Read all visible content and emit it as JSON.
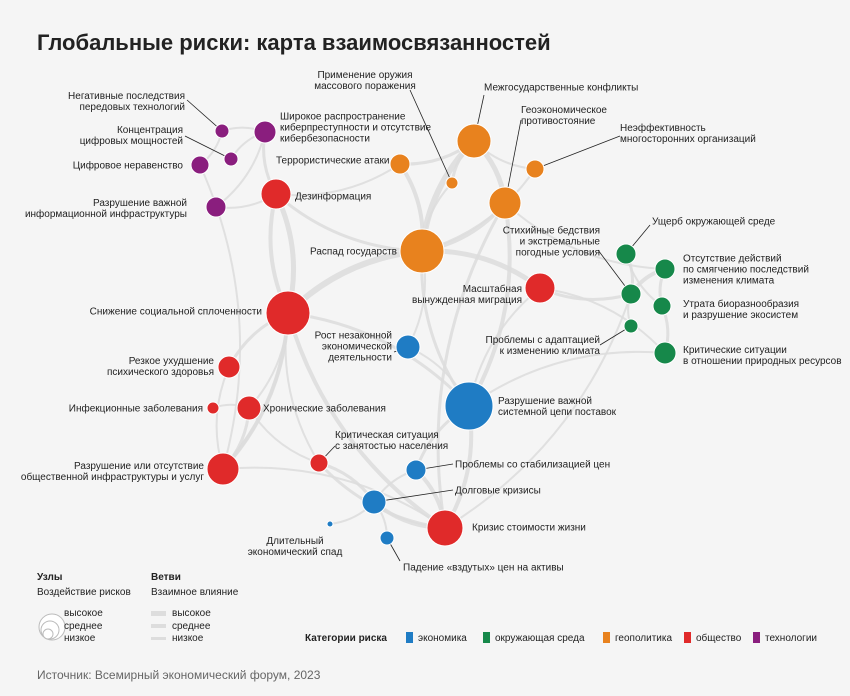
{
  "title": "Глобальные риски: карта взаимосвязанностей",
  "categories": [
    {
      "name": "экономика",
      "color": "#1f7cc4"
    },
    {
      "name": "окружающая среда",
      "color": "#16884a"
    },
    {
      "name": "геополитика",
      "color": "#e8821e"
    },
    {
      "name": "общество",
      "color": "#e02a2a"
    },
    {
      "name": "технологии",
      "color": "#8a1e7e"
    }
  ],
  "nodes": [
    {
      "label": [
        "Негативные последствия",
        "передовых технологий"
      ],
      "category": "технологии"
    },
    {
      "label": [
        "Концентрация",
        "цифровых мощностей"
      ],
      "category": "технологии"
    },
    {
      "label": [
        "Цифровое неравенство"
      ],
      "category": "технологии"
    },
    {
      "label": [
        "Разрушение важной",
        "информационной инфраструктуры"
      ],
      "category": "технологии"
    },
    {
      "label": [
        "Широкое распространение",
        "киберпреступности и отсутствие",
        "кибербезопасности"
      ],
      "category": "технологии"
    },
    {
      "label": [
        "Террористические атаки"
      ],
      "category": "геополитика"
    },
    {
      "label": [
        "Применение оружия",
        "массового поражения"
      ],
      "category": "геополитика"
    },
    {
      "label": [
        "Межгосударственные конфликты"
      ],
      "category": "геополитика"
    },
    {
      "label": [
        "Геоэкономическое",
        "противостояние"
      ],
      "category": "геополитика"
    },
    {
      "label": [
        "Неэффективность",
        "многосторонних организаций"
      ],
      "category": "геополитика"
    },
    {
      "label": [
        "Распад государств"
      ],
      "category": "геополитика"
    },
    {
      "label": [
        "Ущерб окружающей среде"
      ],
      "category": "окружающая среда"
    },
    {
      "label": [
        "Отсутствие действий",
        "по смягчению последствий",
        "изменения климата"
      ],
      "category": "окружающая среда"
    },
    {
      "label": [
        "Утрата биоразнообразия",
        "и разрушение экосистем"
      ],
      "category": "окружающая среда"
    },
    {
      "label": [
        "Критические ситуации",
        "в отношении природных ресурсов"
      ],
      "category": "окружающая среда"
    },
    {
      "label": [
        "Стихийные бедствия",
        "и экстремальные",
        "погодные условия"
      ],
      "category": "окружающая среда"
    },
    {
      "label": [
        "Проблемы с адаптацией",
        "к изменению климата"
      ],
      "category": "окружающая среда"
    },
    {
      "label": [
        "Дезинформация"
      ],
      "category": "общество"
    },
    {
      "label": [
        "Масштабная",
        "вынужденная миграция"
      ],
      "category": "общество"
    },
    {
      "label": [
        "Снижение социальной сплоченности"
      ],
      "category": "общество"
    },
    {
      "label": [
        "Резкое ухудшение",
        "психического здоровья"
      ],
      "category": "общество"
    },
    {
      "label": [
        "Инфекционные заболевания"
      ],
      "category": "общество"
    },
    {
      "label": [
        "Хронические заболевания"
      ],
      "category": "общество"
    },
    {
      "label": [
        "Критическая ситуация",
        "с занятостью населения"
      ],
      "category": "общество"
    },
    {
      "label": [
        "Разрушение или отсутствие",
        "общественной инфраструктуры и услуг"
      ],
      "category": "общество"
    },
    {
      "label": [
        "Кризис стоимости жизни"
      ],
      "category": "общество"
    },
    {
      "label": [
        "Рост незаконной",
        "экономической",
        "деятельности"
      ],
      "category": "экономика"
    },
    {
      "label": [
        "Разрушение важной",
        "системной цепи поставок"
      ],
      "category": "экономика"
    },
    {
      "label": [
        "Проблемы со стабилизацией цен"
      ],
      "category": "экономика"
    },
    {
      "label": [
        "Долговые кризисы"
      ],
      "category": "экономика"
    },
    {
      "label": [
        "Длительный",
        "экономический спад"
      ],
      "category": "экономика"
    },
    {
      "label": [
        "Падение «вздутых» цен на активы"
      ],
      "category": "экономика"
    }
  ],
  "legend": {
    "nodes_title": "Узлы",
    "nodes_subtitle": "Воздействие рисков",
    "edges_title": "Ветви",
    "edges_subtitle": "Взаимное влияние",
    "levels": [
      "высокое",
      "среднее",
      "низкое"
    ],
    "categories_title": "Категории риска"
  },
  "source": "Источник: Всемирный экономический форум, 2023"
}
